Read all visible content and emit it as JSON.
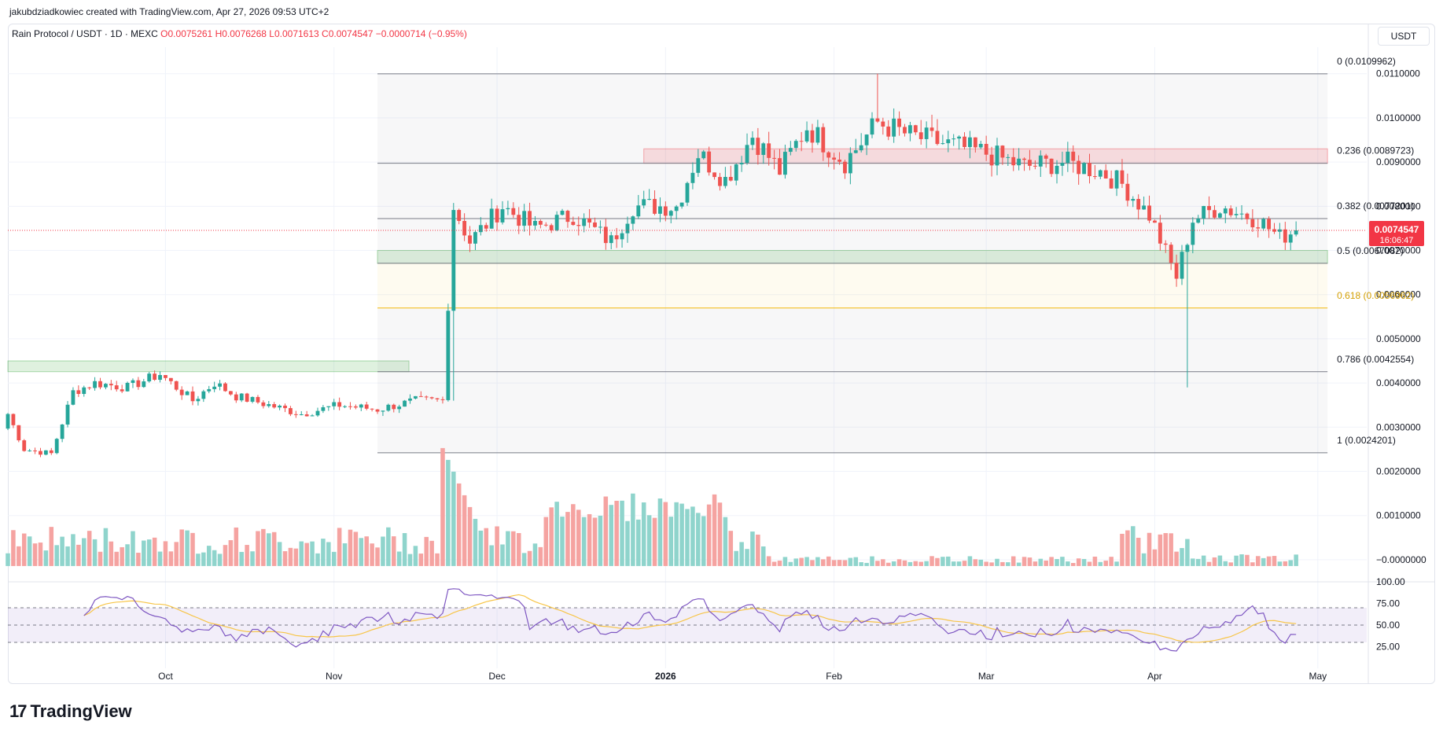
{
  "header": {
    "attribution": "jakubdziadkowiec created with TradingView.com, Apr 27, 2026 09:53 UTC+2",
    "symbol": "Rain Protocol / USDT · 1D · MEXC",
    "ohlc": "O0.0075261 H0.0076268 L0.0071613 C0.0074547 −0.0000714 (−0.95%)",
    "currency": "USDT"
  },
  "brand": {
    "logo": "17",
    "name": "TradingView"
  },
  "price_label": {
    "value": "0.0074547",
    "countdown": "16:06:47"
  },
  "colors": {
    "up": "#26a69a",
    "down": "#ef5350",
    "vol_up": "#8fd4cc",
    "vol_down": "#f5a3a1",
    "rsi": "#7e57c2",
    "rsi_ma": "#f7c548",
    "fib": "#787b86",
    "fib_618": "#f2b705"
  },
  "chart_data": {
    "type": "candlestick",
    "price_axis": {
      "ticks": [
        "0.0110000",
        "0.0100000",
        "0.0090000",
        "0.0080000",
        "0.0070000",
        "0.0060000",
        "0.0050000",
        "0.0040000",
        "0.0030000",
        "0.0020000",
        "0.0010000",
        "−0.0000000"
      ],
      "range": [
        -0.0005,
        0.0116
      ]
    },
    "time_axis": {
      "ticks": [
        "Oct",
        "Nov",
        "Dec",
        "2026",
        "Feb",
        "Mar",
        "Apr",
        "May"
      ],
      "dates": [
        "2025-10-01",
        "2025-11-01",
        "2025-12-01",
        "2026-01-01",
        "2026-02-01",
        "2026-03-01",
        "2026-04-01",
        "2026-05-01"
      ],
      "range": [
        "2025-09-02",
        "2026-05-10"
      ]
    },
    "fib_levels": [
      {
        "label": "0 (0.0109962)",
        "level": 0.0109962
      },
      {
        "label": "0.236 (0.0089723)",
        "level": 0.0089723
      },
      {
        "label": "0.382 (0.0077201)",
        "level": 0.0077201
      },
      {
        "label": "0.5 (0.0067082)",
        "level": 0.0067082
      },
      {
        "label": "0.618 (0.0056962)",
        "level": 0.0056962
      },
      {
        "label": "0.786 (0.0042554)",
        "level": 0.0042554
      },
      {
        "label": "1 (0.0024201)",
        "level": 0.0024201
      }
    ],
    "fib_range": [
      "2025-11-09",
      "2026-04-27"
    ],
    "zones": [
      {
        "kind": "resistance",
        "top": 0.0093,
        "bottom": 0.0089723,
        "from": "2025-12-28",
        "to": "2026-04-27"
      },
      {
        "kind": "support",
        "top": 0.007,
        "bottom": 0.0067082,
        "from": "2025-11-09",
        "to": "2026-04-27"
      },
      {
        "kind": "support",
        "top": 0.0045,
        "bottom": 0.0042554,
        "from": "2025-09-02",
        "to": "2025-11-09"
      }
    ],
    "anchors": [
      [
        "2025-09-02",
        0.0033
      ],
      [
        "2025-09-05",
        0.0025
      ],
      [
        "2025-09-10",
        0.0024
      ],
      [
        "2025-09-14",
        0.0038
      ],
      [
        "2025-09-18",
        0.004
      ],
      [
        "2025-09-24",
        0.0039
      ],
      [
        "2025-09-30",
        0.0042
      ],
      [
        "2025-10-06",
        0.0036
      ],
      [
        "2025-10-10",
        0.004
      ],
      [
        "2025-10-14",
        0.0037
      ],
      [
        "2025-10-20",
        0.0035
      ],
      [
        "2025-10-26",
        0.0033
      ],
      [
        "2025-11-02",
        0.0035
      ],
      [
        "2025-11-09",
        0.0034
      ],
      [
        "2025-11-16",
        0.0036
      ],
      [
        "2025-11-21",
        0.0036
      ],
      [
        "2025-11-23",
        0.008
      ],
      [
        "2025-11-26",
        0.0072
      ],
      [
        "2025-12-02",
        0.008
      ],
      [
        "2025-12-08",
        0.0075
      ],
      [
        "2025-12-15",
        0.0078
      ],
      [
        "2025-12-22",
        0.0072
      ],
      [
        "2025-12-26",
        0.008
      ],
      [
        "2026-01-03",
        0.008
      ],
      [
        "2026-01-07",
        0.0092
      ],
      [
        "2026-01-12",
        0.0086
      ],
      [
        "2026-01-17",
        0.0096
      ],
      [
        "2026-01-22",
        0.0088
      ],
      [
        "2026-01-27",
        0.0098
      ],
      [
        "2026-02-03",
        0.009
      ],
      [
        "2026-02-09",
        0.0099
      ],
      [
        "2026-02-15",
        0.0096
      ],
      [
        "2026-02-22",
        0.0094
      ],
      [
        "2026-03-01",
        0.0092
      ],
      [
        "2026-03-08",
        0.0089
      ],
      [
        "2026-03-15",
        0.009
      ],
      [
        "2026-03-22",
        0.0088
      ],
      [
        "2026-03-26",
        0.0085
      ],
      [
        "2026-03-31",
        0.0078
      ],
      [
        "2026-04-05",
        0.0064
      ],
      [
        "2026-04-08",
        0.0077
      ],
      [
        "2026-04-13",
        0.008
      ],
      [
        "2026-04-20",
        0.0077
      ],
      [
        "2026-04-24",
        0.0073
      ],
      [
        "2026-04-27",
        0.0074547
      ]
    ],
    "volume": {
      "peak_date": "2025-11-23",
      "note": "volume histogram overlaid at bottom of price pane"
    },
    "rsi": {
      "ticks": [
        "100.00",
        "75.00",
        "50.00",
        "25.00"
      ],
      "upper": 70,
      "middle": 50,
      "lower": 30
    }
  }
}
